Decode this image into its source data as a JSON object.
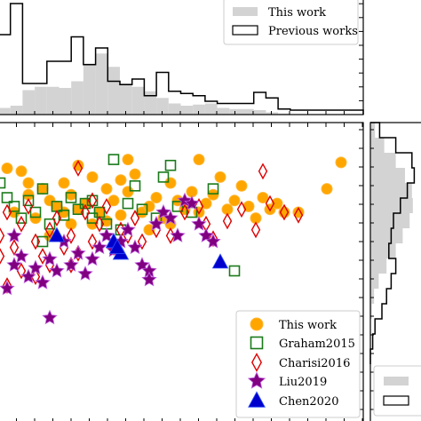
{
  "chart_data": [
    {
      "panel": "top-histogram",
      "type": "histogram",
      "series": [
        {
          "name": "This work",
          "style": "filled",
          "color": "#d3d3d3",
          "values": [
            0.06,
            0.08,
            0.22,
            0.25,
            0.25,
            0.24,
            0.3,
            0.46,
            0.55,
            0.43,
            0.28,
            0.25,
            0.21,
            0.15,
            0.1,
            0.08,
            0.09,
            0.1,
            0.06,
            0.05,
            0.05,
            0.04,
            0.02,
            0.01,
            0.0,
            0.0,
            0.0,
            0.0,
            0.0,
            0.0
          ]
        },
        {
          "name": "Previous works",
          "style": "step",
          "color": "#000000",
          "values": [
            0.72,
            1.0,
            0.28,
            0.28,
            0.48,
            0.48,
            0.7,
            0.45,
            0.6,
            0.3,
            0.27,
            0.32,
            0.17,
            0.38,
            0.21,
            0.19,
            0.17,
            0.12,
            0.1,
            0.1,
            0.1,
            0.2,
            0.15,
            0.05,
            0.04,
            0.04,
            0.04,
            0.04,
            0.04,
            0.04
          ]
        }
      ],
      "legend": {
        "placement": "top-right",
        "entries": [
          "This work",
          "Previous works"
        ]
      }
    },
    {
      "panel": "right-histogram",
      "type": "histogram",
      "orientation": "horizontal",
      "series": [
        {
          "name": "This work",
          "style": "filled",
          "color": "#d3d3d3",
          "values": [
            0.1,
            0.3,
            0.55,
            0.75,
            0.9,
            0.92,
            0.85,
            0.7,
            0.55,
            0.35,
            0.18,
            0.08,
            0.03,
            0.0,
            0.0,
            0.0
          ]
        },
        {
          "name": "Previous works",
          "style": "step",
          "color": "#000000",
          "values": [
            0.2,
            0.55,
            0.9,
            0.95,
            0.8,
            0.65,
            0.5,
            0.45,
            0.4,
            0.55,
            0.45,
            0.35,
            0.25,
            0.1,
            0.05,
            0.0
          ]
        }
      ],
      "legend": {
        "placement": "bottom",
        "entries": [
          "",
          ""
        ]
      }
    },
    {
      "panel": "main-scatter",
      "type": "scatter",
      "xlim": [
        0,
        100
      ],
      "ylim": [
        0,
        100
      ],
      "grid": false,
      "legend": {
        "placement": "lower-right",
        "entries": [
          "This work",
          "Graham2015",
          "Charisi2016",
          "Liu2019",
          "Chen2020"
        ]
      },
      "series": [
        {
          "name": "This work",
          "marker": "circle",
          "color": "#ffa500",
          "points": [
            [
              2,
              85
            ],
            [
              6,
              84
            ],
            [
              8,
              80
            ],
            [
              12,
              78
            ],
            [
              14,
              74
            ],
            [
              16,
              72
            ],
            [
              18,
              80
            ],
            [
              20,
              76
            ],
            [
              22,
              71
            ],
            [
              24,
              73
            ],
            [
              26,
              82
            ],
            [
              28,
              70
            ],
            [
              30,
              78
            ],
            [
              32,
              74
            ],
            [
              34,
              69
            ],
            [
              36,
              77
            ],
            [
              38,
              83
            ],
            [
              40,
              70
            ],
            [
              42,
              72
            ],
            [
              44,
              75
            ],
            [
              46,
              68
            ],
            [
              48,
              80
            ],
            [
              50,
              74
            ],
            [
              52,
              71
            ],
            [
              54,
              77
            ],
            [
              56,
              70
            ],
            [
              58,
              73
            ],
            [
              60,
              76
            ],
            [
              62,
              82
            ],
            [
              64,
              71
            ],
            [
              66,
              74
            ],
            [
              68,
              79
            ],
            [
              70,
              72
            ],
            [
              72,
              68
            ],
            [
              74,
              75
            ],
            [
              76,
              71
            ],
            [
              78,
              73
            ],
            [
              80,
              70
            ],
            [
              84,
              70
            ],
            [
              92,
              78
            ],
            [
              4,
              70
            ],
            [
              10,
              68
            ],
            [
              26,
              66
            ],
            [
              36,
              88
            ],
            [
              42,
              64
            ],
            [
              34,
              81
            ],
            [
              20,
              66
            ],
            [
              30,
              67
            ],
            [
              22,
              86
            ],
            [
              56,
              88
            ],
            [
              96,
              87
            ],
            [
              48,
              66
            ],
            [
              14,
              62
            ],
            [
              8,
              76
            ],
            [
              18,
              70
            ]
          ]
        },
        {
          "name": "Graham2015",
          "marker": "square",
          "color": "#1a7a1a",
          "points": [
            [
              2,
              75
            ],
            [
              4,
              72
            ],
            [
              6,
              68
            ],
            [
              8,
              74
            ],
            [
              10,
              70
            ],
            [
              12,
              78
            ],
            [
              14,
              66
            ],
            [
              16,
              72
            ],
            [
              18,
              69
            ],
            [
              20,
              75
            ],
            [
              22,
              71
            ],
            [
              24,
              73
            ],
            [
              26,
              68
            ],
            [
              28,
              70
            ],
            [
              30,
              66
            ],
            [
              32,
              88
            ],
            [
              34,
              64
            ],
            [
              36,
              73
            ],
            [
              38,
              79
            ],
            [
              40,
              71
            ],
            [
              44,
              68
            ],
            [
              46,
              82
            ],
            [
              50,
              72
            ],
            [
              54,
              70
            ],
            [
              60,
              78
            ],
            [
              66,
              50
            ],
            [
              0,
              80
            ],
            [
              12,
              60
            ],
            [
              26,
              74
            ],
            [
              48,
              86
            ]
          ]
        },
        {
          "name": "Charisi2016",
          "marker": "diamond",
          "color": "#dd0000",
          "points": [
            [
              0,
              62
            ],
            [
              2,
              70
            ],
            [
              4,
              58
            ],
            [
              6,
              66
            ],
            [
              8,
              72
            ],
            [
              10,
              60
            ],
            [
              12,
              55
            ],
            [
              14,
              64
            ],
            [
              16,
              68
            ],
            [
              18,
              58
            ],
            [
              20,
              62
            ],
            [
              22,
              56
            ],
            [
              24,
              70
            ],
            [
              26,
              60
            ],
            [
              28,
              66
            ],
            [
              30,
              72
            ],
            [
              32,
              58
            ],
            [
              34,
              64
            ],
            [
              36,
              62
            ],
            [
              38,
              68
            ],
            [
              40,
              60
            ],
            [
              44,
              64
            ],
            [
              48,
              62
            ],
            [
              52,
              70
            ],
            [
              56,
              72
            ],
            [
              58,
              66
            ],
            [
              60,
              61
            ],
            [
              64,
              67
            ],
            [
              68,
              71
            ],
            [
              72,
              64
            ],
            [
              76,
              73
            ],
            [
              80,
              70
            ],
            [
              84,
              69
            ],
            [
              74,
              84
            ],
            [
              22,
              85
            ],
            [
              2,
              45
            ],
            [
              0,
              55
            ],
            [
              6,
              50
            ],
            [
              14,
              52
            ],
            [
              20,
              52
            ],
            [
              26,
              74
            ],
            [
              10,
              48
            ]
          ]
        },
        {
          "name": "Liu2019",
          "marker": "star",
          "color": "#800080",
          "points": [
            [
              2,
              44
            ],
            [
              4,
              52
            ],
            [
              6,
              55
            ],
            [
              8,
              48
            ],
            [
              10,
              51
            ],
            [
              12,
              46
            ],
            [
              14,
              54
            ],
            [
              16,
              50
            ],
            [
              18,
              60
            ],
            [
              20,
              52
            ],
            [
              22,
              56
            ],
            [
              24,
              49
            ],
            [
              26,
              54
            ],
            [
              28,
              58
            ],
            [
              30,
              62
            ],
            [
              32,
              57
            ],
            [
              34,
              60
            ],
            [
              36,
              64
            ],
            [
              38,
              58
            ],
            [
              40,
              52
            ],
            [
              42,
              50
            ],
            [
              44,
              66
            ],
            [
              46,
              70
            ],
            [
              48,
              68
            ],
            [
              50,
              62
            ],
            [
              52,
              74
            ],
            [
              54,
              73
            ],
            [
              56,
              66
            ],
            [
              58,
              62
            ],
            [
              60,
              60
            ],
            [
              14,
              34
            ],
            [
              42,
              47
            ],
            [
              4,
              62
            ]
          ]
        },
        {
          "name": "Chen2020",
          "marker": "triangle",
          "color": "#0000cc",
          "points": [
            [
              16,
              62
            ],
            [
              32,
              60
            ],
            [
              34,
              56
            ],
            [
              33,
              58
            ],
            [
              62,
              53
            ]
          ]
        }
      ]
    }
  ]
}
